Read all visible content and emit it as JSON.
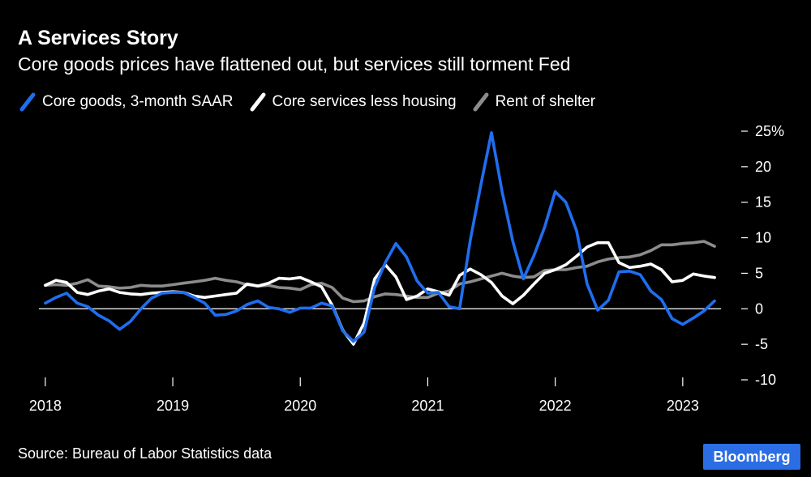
{
  "chart_data": {
    "type": "line",
    "title": "A Services Story",
    "subtitle": "Core goods prices have flattened out, but services still torment Fed",
    "source": "Source: Bureau of Labor Statistics data",
    "brand": "Bloomberg",
    "ylim": [
      -10,
      25
    ],
    "y_ticks": [
      {
        "value": 25,
        "label": "25%"
      },
      {
        "value": 20,
        "label": "20"
      },
      {
        "value": 15,
        "label": "15"
      },
      {
        "value": 10,
        "label": "10"
      },
      {
        "value": 5,
        "label": "5"
      },
      {
        "value": 0,
        "label": "0"
      },
      {
        "value": -5,
        "label": "-5"
      },
      {
        "value": -10,
        "label": "-10"
      }
    ],
    "xlim": [
      2017.95,
      2023.3
    ],
    "x_ticks": [
      {
        "value": 2018,
        "label": "2018"
      },
      {
        "value": 2019,
        "label": "2019"
      },
      {
        "value": 2020,
        "label": "2020"
      },
      {
        "value": 2021,
        "label": "2021"
      },
      {
        "value": 2022,
        "label": "2022"
      },
      {
        "value": 2023,
        "label": "2023"
      }
    ],
    "series": [
      {
        "name": "Rent of shelter",
        "color": "#8c8c8c",
        "points": [
          [
            2018.0,
            3.3
          ],
          [
            2018.083,
            3.4
          ],
          [
            2018.167,
            3.3
          ],
          [
            2018.25,
            3.6
          ],
          [
            2018.333,
            4.1
          ],
          [
            2018.417,
            3.2
          ],
          [
            2018.5,
            3.1
          ],
          [
            2018.583,
            2.9
          ],
          [
            2018.667,
            3.0
          ],
          [
            2018.75,
            3.3
          ],
          [
            2018.833,
            3.2
          ],
          [
            2018.917,
            3.2
          ],
          [
            2019.0,
            3.4
          ],
          [
            2019.083,
            3.6
          ],
          [
            2019.167,
            3.8
          ],
          [
            2019.25,
            4.0
          ],
          [
            2019.333,
            4.3
          ],
          [
            2019.417,
            4.0
          ],
          [
            2019.5,
            3.8
          ],
          [
            2019.583,
            3.4
          ],
          [
            2019.667,
            3.2
          ],
          [
            2019.75,
            3.3
          ],
          [
            2019.833,
            3.0
          ],
          [
            2019.917,
            2.9
          ],
          [
            2020.0,
            2.7
          ],
          [
            2020.083,
            3.4
          ],
          [
            2020.167,
            3.6
          ],
          [
            2020.25,
            3.0
          ],
          [
            2020.333,
            1.5
          ],
          [
            2020.417,
            1.0
          ],
          [
            2020.5,
            1.1
          ],
          [
            2020.583,
            1.7
          ],
          [
            2020.667,
            2.1
          ],
          [
            2020.75,
            2.0
          ],
          [
            2020.833,
            1.8
          ],
          [
            2020.917,
            1.6
          ],
          [
            2021.0,
            1.6
          ],
          [
            2021.083,
            2.2
          ],
          [
            2021.167,
            2.5
          ],
          [
            2021.25,
            3.5
          ],
          [
            2021.333,
            3.8
          ],
          [
            2021.417,
            4.2
          ],
          [
            2021.5,
            4.6
          ],
          [
            2021.583,
            5.0
          ],
          [
            2021.667,
            4.6
          ],
          [
            2021.75,
            4.4
          ],
          [
            2021.833,
            4.5
          ],
          [
            2021.917,
            5.4
          ],
          [
            2022.0,
            5.5
          ],
          [
            2022.083,
            5.5
          ],
          [
            2022.167,
            5.8
          ],
          [
            2022.25,
            6.0
          ],
          [
            2022.333,
            6.6
          ],
          [
            2022.417,
            7.0
          ],
          [
            2022.5,
            7.2
          ],
          [
            2022.583,
            7.3
          ],
          [
            2022.667,
            7.6
          ],
          [
            2022.75,
            8.2
          ],
          [
            2022.833,
            9.0
          ],
          [
            2022.917,
            9.0
          ],
          [
            2023.0,
            9.2
          ],
          [
            2023.083,
            9.3
          ],
          [
            2023.167,
            9.5
          ],
          [
            2023.25,
            8.8
          ]
        ]
      },
      {
        "name": "Core services less housing",
        "color": "#ffffff",
        "points": [
          [
            2018.0,
            3.3
          ],
          [
            2018.083,
            4.0
          ],
          [
            2018.167,
            3.7
          ],
          [
            2018.25,
            2.3
          ],
          [
            2018.333,
            2.0
          ],
          [
            2018.417,
            2.5
          ],
          [
            2018.5,
            2.8
          ],
          [
            2018.583,
            2.3
          ],
          [
            2018.667,
            2.1
          ],
          [
            2018.75,
            2.0
          ],
          [
            2018.833,
            2.2
          ],
          [
            2018.917,
            2.3
          ],
          [
            2019.0,
            2.4
          ],
          [
            2019.083,
            2.3
          ],
          [
            2019.167,
            1.8
          ],
          [
            2019.25,
            1.6
          ],
          [
            2019.333,
            1.8
          ],
          [
            2019.417,
            2.0
          ],
          [
            2019.5,
            2.2
          ],
          [
            2019.583,
            3.5
          ],
          [
            2019.667,
            3.2
          ],
          [
            2019.75,
            3.6
          ],
          [
            2019.833,
            4.3
          ],
          [
            2019.917,
            4.2
          ],
          [
            2020.0,
            4.4
          ],
          [
            2020.083,
            3.8
          ],
          [
            2020.167,
            3.1
          ],
          [
            2020.25,
            0.5
          ],
          [
            2020.333,
            -3.0
          ],
          [
            2020.417,
            -5.0
          ],
          [
            2020.5,
            -2.0
          ],
          [
            2020.583,
            4.2
          ],
          [
            2020.667,
            6.2
          ],
          [
            2020.75,
            4.5
          ],
          [
            2020.833,
            1.3
          ],
          [
            2020.917,
            1.8
          ],
          [
            2021.0,
            2.8
          ],
          [
            2021.083,
            2.4
          ],
          [
            2021.167,
            1.9
          ],
          [
            2021.25,
            4.7
          ],
          [
            2021.333,
            5.6
          ],
          [
            2021.417,
            4.8
          ],
          [
            2021.5,
            3.7
          ],
          [
            2021.583,
            1.8
          ],
          [
            2021.667,
            0.7
          ],
          [
            2021.75,
            1.9
          ],
          [
            2021.833,
            3.5
          ],
          [
            2021.917,
            5.0
          ],
          [
            2022.0,
            5.5
          ],
          [
            2022.083,
            6.2
          ],
          [
            2022.167,
            7.4
          ],
          [
            2022.25,
            8.7
          ],
          [
            2022.333,
            9.3
          ],
          [
            2022.417,
            9.3
          ],
          [
            2022.5,
            6.5
          ],
          [
            2022.583,
            5.8
          ],
          [
            2022.667,
            6.0
          ],
          [
            2022.75,
            6.3
          ],
          [
            2022.833,
            5.5
          ],
          [
            2022.917,
            3.8
          ],
          [
            2023.0,
            4.0
          ],
          [
            2023.083,
            4.9
          ],
          [
            2023.167,
            4.6
          ],
          [
            2023.25,
            4.4
          ]
        ]
      },
      {
        "name": "Core goods, 3-month SAAR",
        "color": "#1f6ef0",
        "points": [
          [
            2018.0,
            0.8
          ],
          [
            2018.083,
            1.6
          ],
          [
            2018.167,
            2.2
          ],
          [
            2018.25,
            0.8
          ],
          [
            2018.333,
            0.3
          ],
          [
            2018.417,
            -0.9
          ],
          [
            2018.5,
            -1.7
          ],
          [
            2018.583,
            -2.9
          ],
          [
            2018.667,
            -1.8
          ],
          [
            2018.75,
            0.0
          ],
          [
            2018.833,
            1.5
          ],
          [
            2018.917,
            2.2
          ],
          [
            2019.0,
            2.3
          ],
          [
            2019.083,
            2.3
          ],
          [
            2019.167,
            1.6
          ],
          [
            2019.25,
            0.8
          ],
          [
            2019.333,
            -0.9
          ],
          [
            2019.417,
            -0.8
          ],
          [
            2019.5,
            -0.3
          ],
          [
            2019.583,
            0.6
          ],
          [
            2019.667,
            1.1
          ],
          [
            2019.75,
            0.2
          ],
          [
            2019.833,
            0.0
          ],
          [
            2019.917,
            -0.5
          ],
          [
            2020.0,
            0.1
          ],
          [
            2020.083,
            0.1
          ],
          [
            2020.167,
            0.8
          ],
          [
            2020.25,
            0.4
          ],
          [
            2020.333,
            -3.1
          ],
          [
            2020.417,
            -4.6
          ],
          [
            2020.5,
            -3.3
          ],
          [
            2020.583,
            3.0
          ],
          [
            2020.667,
            6.5
          ],
          [
            2020.75,
            9.2
          ],
          [
            2020.833,
            7.3
          ],
          [
            2020.917,
            3.9
          ],
          [
            2021.0,
            2.2
          ],
          [
            2021.083,
            2.3
          ],
          [
            2021.167,
            0.3
          ],
          [
            2021.25,
            0.0
          ],
          [
            2021.333,
            9.6
          ],
          [
            2021.417,
            17.5
          ],
          [
            2021.5,
            24.8
          ],
          [
            2021.583,
            16.5
          ],
          [
            2021.667,
            9.5
          ],
          [
            2021.75,
            4.2
          ],
          [
            2021.833,
            7.5
          ],
          [
            2021.917,
            11.5
          ],
          [
            2022.0,
            16.5
          ],
          [
            2022.083,
            15.0
          ],
          [
            2022.167,
            11.0
          ],
          [
            2022.25,
            3.5
          ],
          [
            2022.333,
            -0.2
          ],
          [
            2022.417,
            1.2
          ],
          [
            2022.5,
            5.2
          ],
          [
            2022.583,
            5.3
          ],
          [
            2022.667,
            4.8
          ],
          [
            2022.75,
            2.5
          ],
          [
            2022.833,
            1.3
          ],
          [
            2022.917,
            -1.4
          ],
          [
            2023.0,
            -2.2
          ],
          [
            2023.083,
            -1.3
          ],
          [
            2023.167,
            -0.3
          ],
          [
            2023.25,
            1.1
          ]
        ]
      }
    ]
  }
}
